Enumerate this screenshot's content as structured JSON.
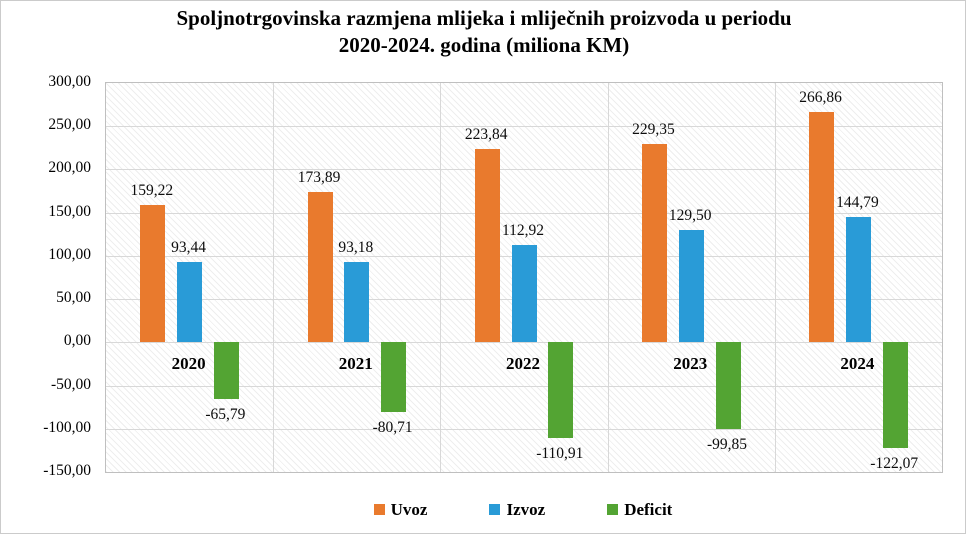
{
  "meta": {
    "background_color": "#FFFFFF",
    "frame_border_color": "#CBCBCB"
  },
  "chart_data": {
    "type": "bar",
    "title": "Spoljnotrgovinska razmjena mlijeka i mliječnih proizvoda  u periodu 2020-2024. godina (miliona KM)",
    "title_lines": [
      "Spoljnotrgovinska razmjena mlijeka i mliječnih proizvoda  u periodu",
      "2020-2024. godina (miliona KM)"
    ],
    "categories": [
      "2020",
      "2021",
      "2022",
      "2023",
      "2024"
    ],
    "series": [
      {
        "name": "Uvoz",
        "color": "#E97A2D",
        "values": [
          159.22,
          173.89,
          223.84,
          229.35,
          266.86
        ]
      },
      {
        "name": "Izvoz",
        "color": "#299BD7",
        "values": [
          93.44,
          93.18,
          112.92,
          129.5,
          144.79
        ]
      },
      {
        "name": "Deficit",
        "color": "#53A433",
        "values": [
          -65.79,
          -80.71,
          -110.91,
          -99.85,
          -122.07
        ]
      }
    ],
    "xlabel": "",
    "ylabel": "",
    "ylim": [
      -150,
      300
    ],
    "ytick_step": 50,
    "decimal_separator": ",",
    "grid": true,
    "legend_position": "bottom",
    "plot_background": "diagonal-hatch",
    "gridline_color": "#D8D8D8",
    "plot_border_color": "#BFBFBF"
  }
}
